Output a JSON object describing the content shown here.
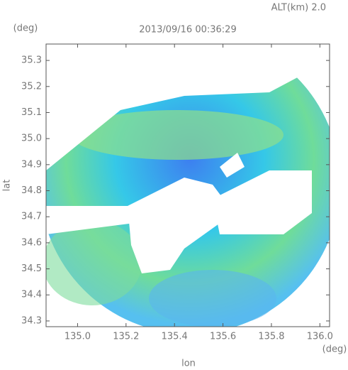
{
  "chart_data": {
    "type": "radar",
    "title": "2013/09/16 00:36:29",
    "subtitle": "ALT(km) 2.0",
    "x_label": "lon",
    "y_label": "lat",
    "x_unit": "(deg)",
    "y_unit": "(deg)",
    "xlim": [
      134.87,
      136.04
    ],
    "ylim": [
      34.278,
      35.363
    ],
    "xticks": [
      {
        "value": 135,
        "label": "135.0"
      },
      135.2,
      135.4,
      135.6,
      135.8,
      {
        "value": 136,
        "label": "136.0"
      }
    ],
    "yticks": [
      34.3,
      34.4,
      34.5,
      34.6,
      34.7,
      34.8,
      34.9,
      {
        "value": 35,
        "label": "35.0"
      },
      35.1,
      35.2,
      35.3
    ]
  }
}
